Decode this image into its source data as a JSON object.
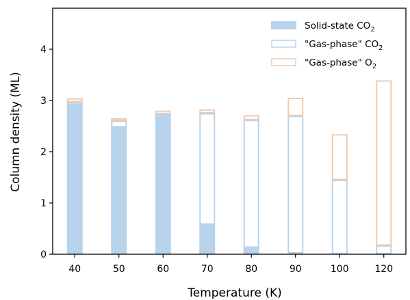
{
  "chart_data": {
    "type": "bar",
    "stacked": true,
    "categories": [
      "40",
      "50",
      "60",
      "70",
      "80",
      "90",
      "100",
      "120"
    ],
    "xlabel": "Temperature (K)",
    "ylabel": "Column density (ML)",
    "ylim": [
      0,
      4.8
    ],
    "yticks": [
      "0",
      "1",
      "2",
      "3",
      "4"
    ],
    "grid": false,
    "legend_position": "top-right",
    "series": [
      {
        "name": "Solid-state CO",
        "name_subscript": "2",
        "style": "filled",
        "color": "#b8d4ec",
        "values": [
          2.92,
          2.48,
          2.72,
          0.58,
          0.13,
          0.02,
          0.0,
          0.0
        ]
      },
      {
        "name": "\"Gas-phase\" CO",
        "name_subscript": "2",
        "style": "outline",
        "color": "#b8d4ec",
        "values": [
          0.05,
          0.12,
          0.02,
          2.17,
          2.49,
          2.68,
          1.45,
          0.17
        ]
      },
      {
        "name": "\"Gas-phase\" O",
        "name_subscript": "2",
        "style": "outline",
        "color": "#f0cbb0",
        "values": [
          0.07,
          0.05,
          0.06,
          0.07,
          0.09,
          0.35,
          0.89,
          3.22
        ]
      }
    ]
  }
}
